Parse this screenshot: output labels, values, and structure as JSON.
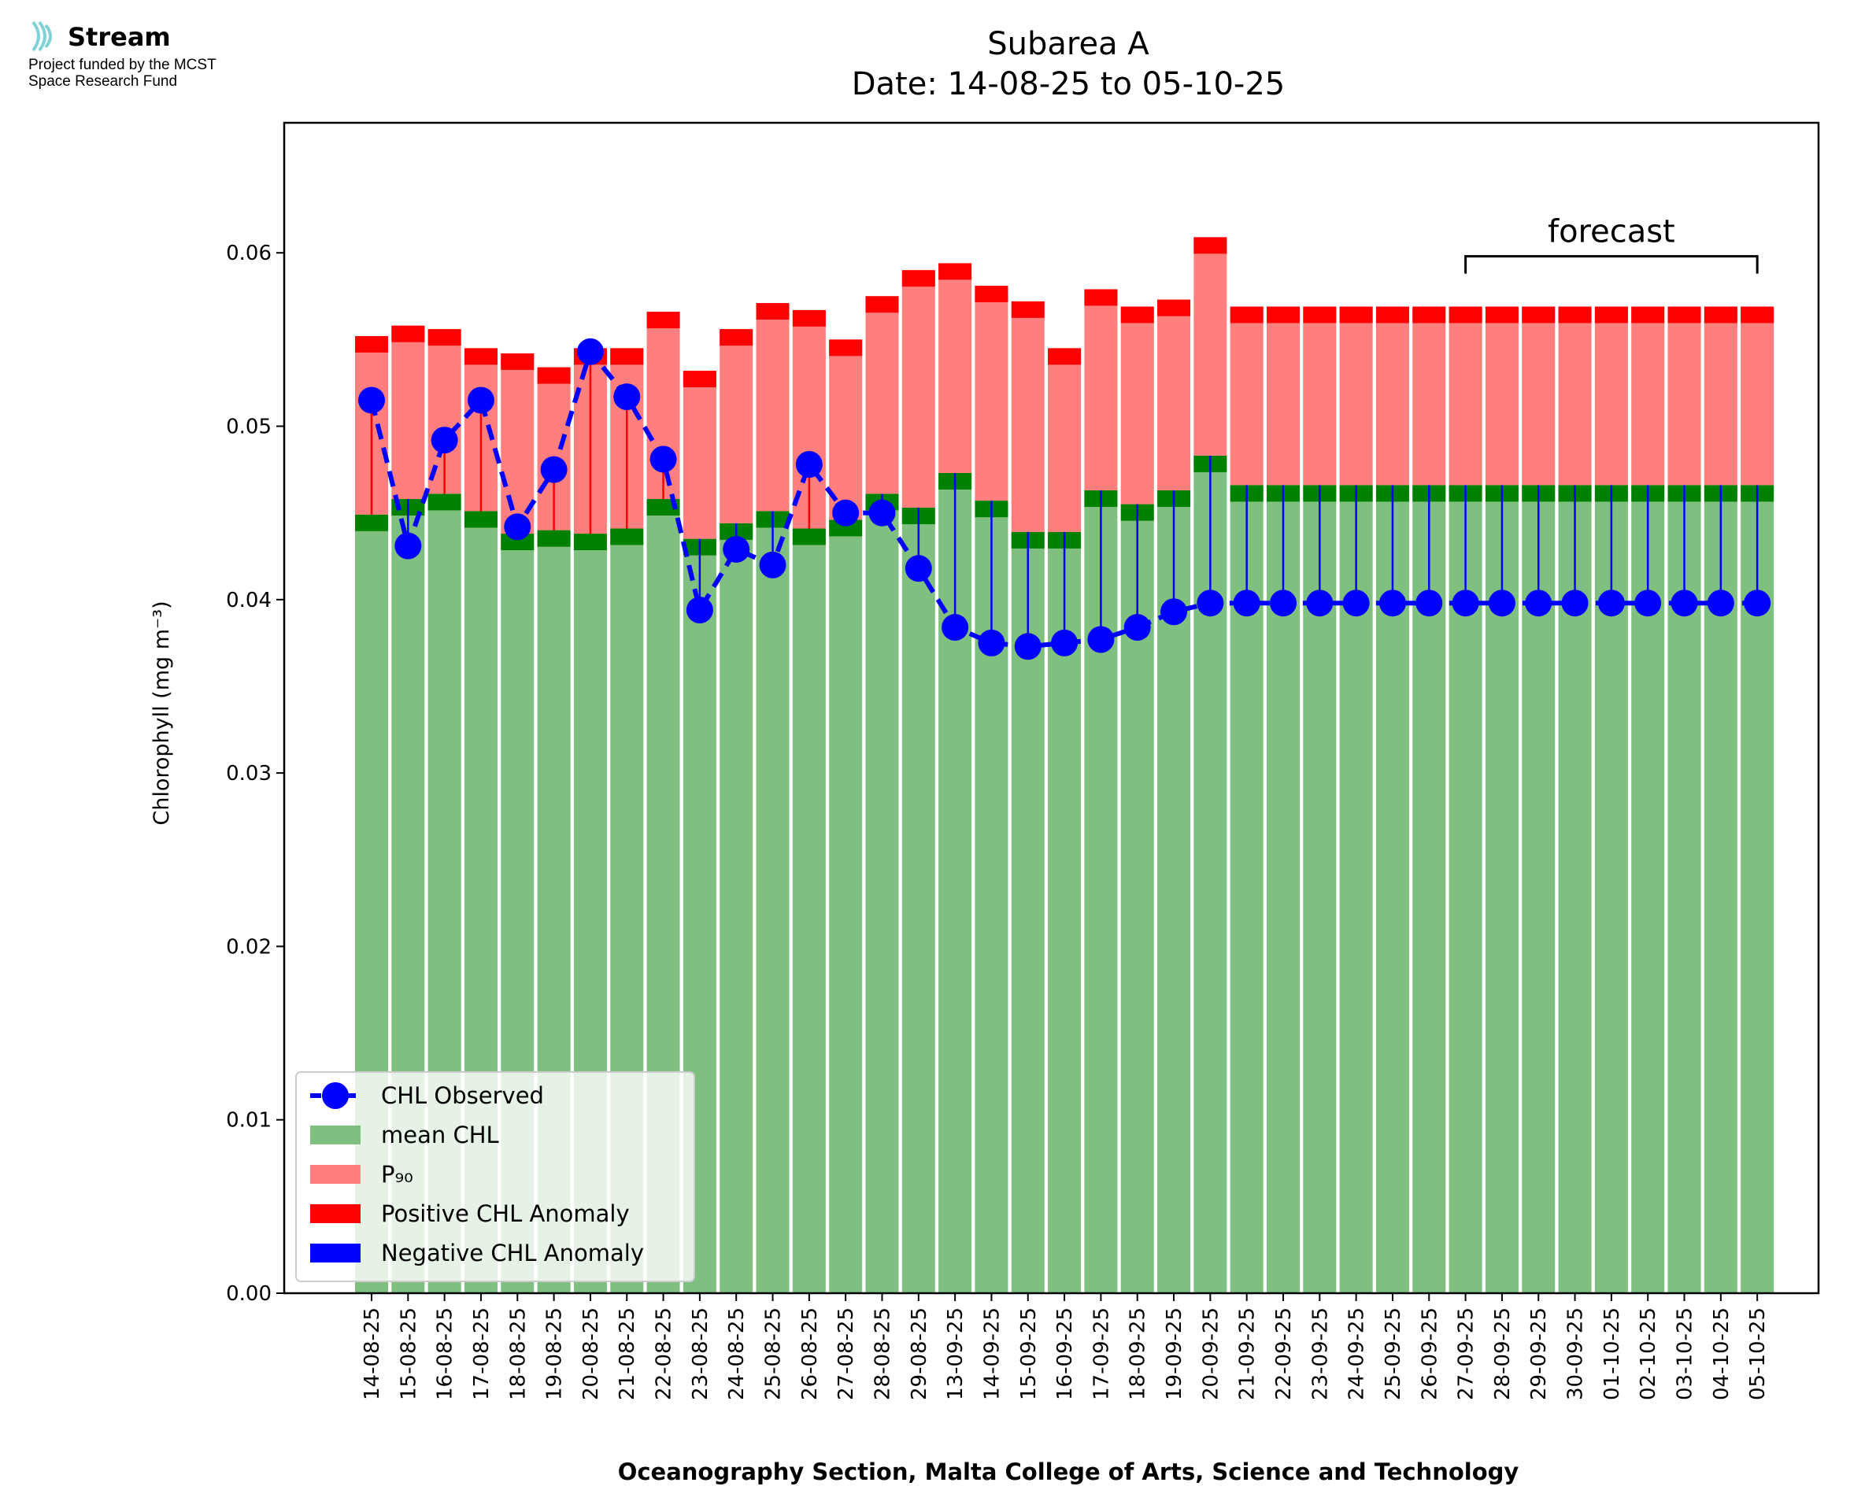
{
  "logo": {
    "name": "Stream",
    "line1": "Project funded by the MCST",
    "line2": "Space Research Fund",
    "color": "#7fd3d6"
  },
  "chart_data": {
    "type": "bar",
    "title": "Subarea A",
    "subtitle": "Date: 14-08-25 to 05-10-25",
    "xlabel": "Oceanography Section, Malta College of Arts, Science and Technology",
    "ylabel": "Chlorophyll (mg m⁻³)",
    "ylim": [
      0,
      0.0675
    ],
    "yticks": [
      "0.00",
      "0.01",
      "0.02",
      "0.03",
      "0.04",
      "0.05",
      "0.06"
    ],
    "categories": [
      "14-08-25",
      "15-08-25",
      "16-08-25",
      "17-08-25",
      "18-08-25",
      "19-08-25",
      "20-08-25",
      "21-08-25",
      "22-08-25",
      "23-08-25",
      "24-08-25",
      "25-08-25",
      "26-08-25",
      "27-08-25",
      "28-08-25",
      "29-08-25",
      "13-09-25",
      "14-09-25",
      "15-09-25",
      "16-09-25",
      "17-09-25",
      "18-09-25",
      "19-09-25",
      "20-09-25",
      "21-09-25",
      "22-09-25",
      "23-09-25",
      "24-09-25",
      "25-09-25",
      "26-09-25",
      "27-09-25",
      "28-09-25",
      "29-09-25",
      "30-09-25",
      "01-10-25",
      "02-10-25",
      "03-10-25",
      "04-10-25",
      "05-10-25"
    ],
    "series": [
      {
        "name": "CHL Observed",
        "style": "blue dashed line with circle markers",
        "values": [
          0.0515,
          0.0431,
          0.0492,
          0.0515,
          0.0442,
          0.0475,
          0.0543,
          0.0517,
          0.0481,
          0.0394,
          0.0429,
          0.042,
          0.0478,
          0.045,
          0.045,
          0.0418,
          0.0384,
          0.0375,
          0.0373,
          0.0375,
          0.0377,
          0.0384,
          0.0393,
          0.0398,
          0.0398,
          0.0398,
          0.0398,
          0.0398,
          0.0398,
          0.0398,
          0.0398,
          0.0398,
          0.0398,
          0.0398,
          0.0398,
          0.0398,
          0.0398,
          0.0398,
          0.0398
        ]
      },
      {
        "name": "mean CHL",
        "values": [
          0.0449,
          0.0458,
          0.0461,
          0.0451,
          0.0438,
          0.044,
          0.0438,
          0.0441,
          0.0458,
          0.0435,
          0.0444,
          0.0451,
          0.0441,
          0.0446,
          0.0461,
          0.0453,
          0.0473,
          0.0457,
          0.0439,
          0.0439,
          0.0463,
          0.0455,
          0.0463,
          0.0483,
          0.0466,
          0.0466,
          0.0466,
          0.0466,
          0.0466,
          0.0466,
          0.0466,
          0.0466,
          0.0466,
          0.0466,
          0.0466,
          0.0466,
          0.0466,
          0.0466,
          0.0466
        ]
      },
      {
        "name": "P₉₀",
        "values": [
          0.0552,
          0.0558,
          0.0556,
          0.0545,
          0.0542,
          0.0534,
          0.0545,
          0.0545,
          0.0566,
          0.0532,
          0.0556,
          0.0571,
          0.0567,
          0.055,
          0.0575,
          0.059,
          0.0594,
          0.0581,
          0.0572,
          0.0545,
          0.0579,
          0.0569,
          0.0573,
          0.0609,
          0.0569,
          0.0569,
          0.0569,
          0.0569,
          0.0569,
          0.0569,
          0.0569,
          0.0569,
          0.0569,
          0.0569,
          0.0569,
          0.0569,
          0.0569,
          0.0569,
          0.0569
        ]
      },
      {
        "name": "Positive CHL Anomaly"
      },
      {
        "name": "Negative CHL Anomaly"
      }
    ],
    "annotation": {
      "text": "forecast",
      "from": "27-09-25",
      "to": "05-10-25"
    },
    "legend": "lower-left",
    "grid": false,
    "colors": {
      "mean": "#7fbf7f",
      "mean_edge": "#008000",
      "p90": "#ff7f7f",
      "p90_edge": "#ff0000",
      "observed": "#0000ff",
      "positive": "#ff0000",
      "negative": "#0000ff"
    }
  }
}
